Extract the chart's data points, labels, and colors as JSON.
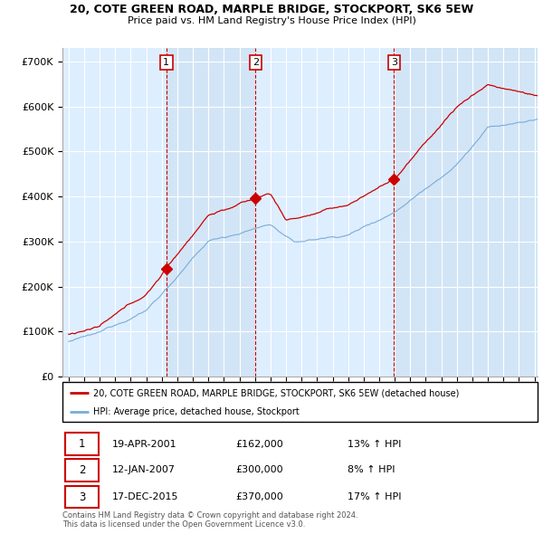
{
  "title": "20, COTE GREEN ROAD, MARPLE BRIDGE, STOCKPORT, SK6 5EW",
  "subtitle": "Price paid vs. HM Land Registry's House Price Index (HPI)",
  "legend_line1": "20, COTE GREEN ROAD, MARPLE BRIDGE, STOCKPORT, SK6 5EW (detached house)",
  "legend_line2": "HPI: Average price, detached house, Stockport",
  "sale_color": "#cc0000",
  "hpi_color": "#7aacd6",
  "bg_color": "#ddeeff",
  "transactions": [
    {
      "num": 1,
      "date": "19-APR-2001",
      "date_x": 2001.29,
      "price": 162000,
      "pct": "13%",
      "dir": "↑"
    },
    {
      "num": 2,
      "date": "12-JAN-2007",
      "date_x": 2007.04,
      "price": 300000,
      "pct": "8%",
      "dir": "↑"
    },
    {
      "num": 3,
      "date": "17-DEC-2015",
      "date_x": 2015.96,
      "price": 370000,
      "pct": "17%",
      "dir": "↑"
    }
  ],
  "footnote1": "Contains HM Land Registry data © Crown copyright and database right 2024.",
  "footnote2": "This data is licensed under the Open Government Licence v3.0.",
  "ylim": [
    0,
    730000
  ],
  "yticks": [
    0,
    100000,
    200000,
    300000,
    400000,
    500000,
    600000,
    700000
  ],
  "xlim_start": 1994.6,
  "xlim_end": 2025.2
}
